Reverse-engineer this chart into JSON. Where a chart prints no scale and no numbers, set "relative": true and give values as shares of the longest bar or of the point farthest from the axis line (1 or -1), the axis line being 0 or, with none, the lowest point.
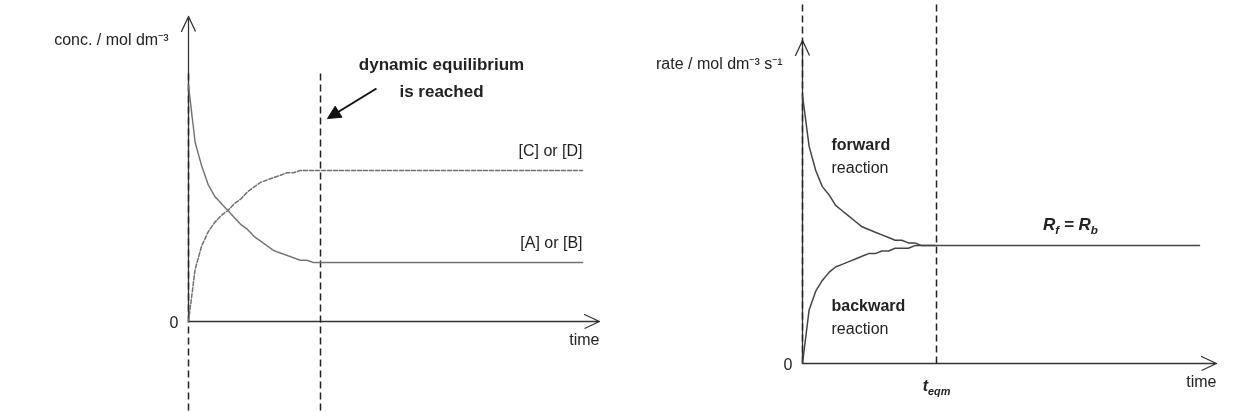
{
  "chart_data": [
    {
      "type": "line",
      "xlabel": "time",
      "ylabel": "conc. / mol dm⁻³",
      "annotations": [
        "dynamic equilibrium is reached",
        "0"
      ],
      "relative": true,
      "line_style": "dotted",
      "categories": [
        null,
        null,
        null,
        null,
        null,
        null,
        null,
        null,
        null,
        null,
        null,
        null,
        null,
        null,
        null,
        null,
        null,
        null,
        null,
        null,
        null,
        null,
        null,
        null,
        null,
        null,
        null,
        null,
        null,
        null,
        null,
        null,
        null,
        null,
        null,
        null,
        null,
        null,
        null,
        null,
        null,
        null,
        null,
        null,
        null,
        null,
        null,
        null,
        null,
        null,
        null,
        null,
        null,
        null,
        null,
        null,
        null,
        null,
        null,
        null,
        null
      ],
      "series": [
        {
          "name": "[A] or [B]",
          "color": "#707070",
          "values": [
            1.0,
            0.76,
            0.66,
            0.58,
            0.53,
            0.5,
            0.47,
            0.44,
            0.41,
            0.39,
            0.36,
            0.34,
            0.32,
            0.3,
            0.29,
            0.28,
            0.27,
            0.26,
            0.26,
            0.25,
            0.25,
            0.25,
            0.25,
            0.25,
            0.25,
            0.25,
            0.25,
            0.25,
            0.25,
            0.25,
            0.25,
            0.25,
            0.25,
            0.25,
            0.25,
            0.25,
            0.25,
            0.25,
            0.25,
            0.25,
            0.25,
            0.25,
            0.25,
            0.25,
            0.25,
            0.25,
            0.25,
            0.25,
            0.25,
            0.25,
            0.25,
            0.25,
            0.25,
            0.25,
            0.25,
            0.25,
            0.25,
            0.25,
            0.25,
            0.25,
            0.25
          ]
        },
        {
          "name": "[C] or [D]",
          "color": "#707070",
          "line_style": "dashed",
          "values": [
            0,
            0.22,
            0.32,
            0.38,
            0.42,
            0.45,
            0.47,
            0.5,
            0.52,
            0.55,
            0.57,
            0.59,
            0.6,
            0.61,
            0.62,
            0.63,
            0.63,
            0.64,
            0.64,
            0.64,
            0.64,
            0.64,
            0.64,
            0.64,
            0.64,
            0.64,
            0.64,
            0.64,
            0.64,
            0.64,
            0.64,
            0.64,
            0.64,
            0.64,
            0.64,
            0.64,
            0.64,
            0.64,
            0.64,
            0.64,
            0.64,
            0.64,
            0.64,
            0.64,
            0.64,
            0.64,
            0.64,
            0.64,
            0.64,
            0.64,
            0.64,
            0.64,
            0.64,
            0.64,
            0.64,
            0.64,
            0.64,
            0.64,
            0.64,
            0.64,
            0.64
          ]
        }
      ]
    },
    {
      "type": "line",
      "xlabel": "time",
      "ylabel": "rate / mol dm⁻³ s⁻¹",
      "annotations": [
        "0",
        "t$_{eqm}$"
      ],
      "relative": true,
      "line_style": "solid",
      "categories": [
        null,
        null,
        null,
        null,
        null,
        null,
        null,
        null,
        null,
        null,
        null,
        null,
        null,
        null,
        null,
        null,
        null,
        null,
        null,
        null,
        null,
        null,
        null,
        null,
        null,
        null,
        null,
        null,
        null,
        null,
        null,
        null,
        null,
        null,
        null,
        null,
        null,
        null,
        null,
        null,
        null,
        null,
        null,
        null,
        null,
        null,
        null,
        null,
        null,
        null,
        null,
        null,
        null,
        null,
        null,
        null,
        null,
        null,
        null,
        null,
        null
      ],
      "series": [
        {
          "name": "forward reaction",
          "color": "#444444",
          "values": [
            1.0,
            0.81,
            0.72,
            0.66,
            0.63,
            0.59,
            0.57,
            0.55,
            0.53,
            0.51,
            0.5,
            0.49,
            0.48,
            0.47,
            0.46,
            0.46,
            0.45,
            0.45,
            0.44,
            0.44,
            0.44,
            null,
            null,
            null,
            null,
            null,
            null,
            null,
            null,
            null,
            null,
            null,
            null,
            null,
            null,
            null,
            null,
            null,
            null,
            null,
            null,
            null,
            null,
            null,
            null,
            null,
            null,
            null,
            null,
            null,
            null,
            null,
            null,
            null,
            null,
            null,
            null,
            null,
            null,
            null,
            null
          ]
        },
        {
          "name": "backward reaction",
          "color": "#444444",
          "values": [
            0,
            0.2,
            0.27,
            0.31,
            0.34,
            0.36,
            0.37,
            0.38,
            0.39,
            0.4,
            0.41,
            0.41,
            0.42,
            0.42,
            0.43,
            0.43,
            0.43,
            0.44,
            0.44,
            0.44,
            0.44,
            null,
            null,
            null,
            null,
            null,
            null,
            null,
            null,
            null,
            null,
            null,
            null,
            null,
            null,
            null,
            null,
            null,
            null,
            null,
            null,
            null,
            null,
            null,
            null,
            null,
            null,
            null,
            null,
            null,
            null,
            null,
            null,
            null,
            null,
            null,
            null,
            null,
            null,
            null,
            null
          ]
        },
        {
          "name": "R$_{f}$ = R$_{b}$",
          "color": "#444444",
          "values": [
            null,
            null,
            null,
            null,
            null,
            null,
            null,
            null,
            null,
            null,
            null,
            null,
            null,
            null,
            null,
            null,
            null,
            null,
            null,
            null,
            0.44,
            0.44,
            0.44,
            0.44,
            0.44,
            0.44,
            0.44,
            0.44,
            0.44,
            0.44,
            0.44,
            0.44,
            0.44,
            0.44,
            0.44,
            0.44,
            0.44,
            0.44,
            0.44,
            0.44,
            0.44,
            0.44,
            0.44,
            0.44,
            0.44,
            0.44,
            0.44,
            0.44,
            0.44,
            0.44,
            0.44,
            0.44,
            0.44,
            0.44,
            0.44,
            0.44,
            0.44,
            0.44,
            0.44,
            0.44,
            0.44
          ]
        }
      ]
    }
  ]
}
